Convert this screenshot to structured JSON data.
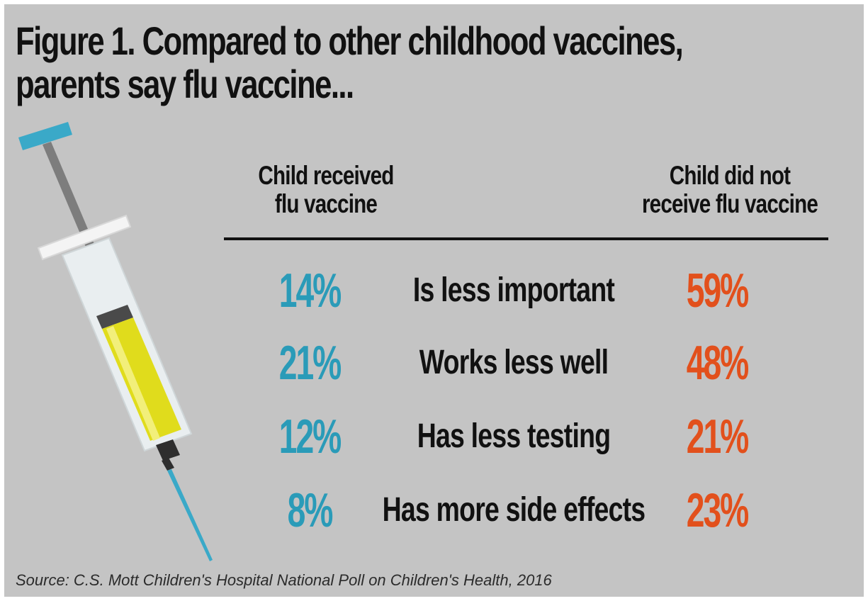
{
  "chart_data": {
    "type": "table",
    "title": "Figure 1. Compared to other childhood vaccines,",
    "title_line_2": "parents say flu vaccine...",
    "columns": [
      {
        "header_line_1": "Child received",
        "header_line_2": "flu vaccine",
        "color": "#2a9bb8"
      },
      {
        "header_line_1": "Child did not",
        "header_line_2": "receive flu vaccine",
        "color": "#e2501c"
      }
    ],
    "rows": [
      {
        "label": "Is less important",
        "received": "14%",
        "not_received": "59%",
        "received_value": 14,
        "not_received_value": 59
      },
      {
        "label": "Works less well",
        "received": "21%",
        "not_received": "48%",
        "received_value": 21,
        "not_received_value": 48
      },
      {
        "label": "Has less testing",
        "received": "12%",
        "not_received": "21%",
        "received_value": 12,
        "not_received_value": 21
      },
      {
        "label": "Has more side effects",
        "received": "8%",
        "not_received": "23%",
        "received_value": 8,
        "not_received_value": 23
      }
    ],
    "source": "Source: C.S. Mott Children's Hospital National Poll on Children's Health, 2016"
  },
  "colors": {
    "background": "#c4c4c4",
    "received": "#2a9bb8",
    "not_received": "#e2501c",
    "text": "#111111",
    "syringe_liquid": "#e0dc1c",
    "syringe_plunger": "#3aa9c8"
  },
  "illustration": {
    "icon": "syringe-icon"
  }
}
